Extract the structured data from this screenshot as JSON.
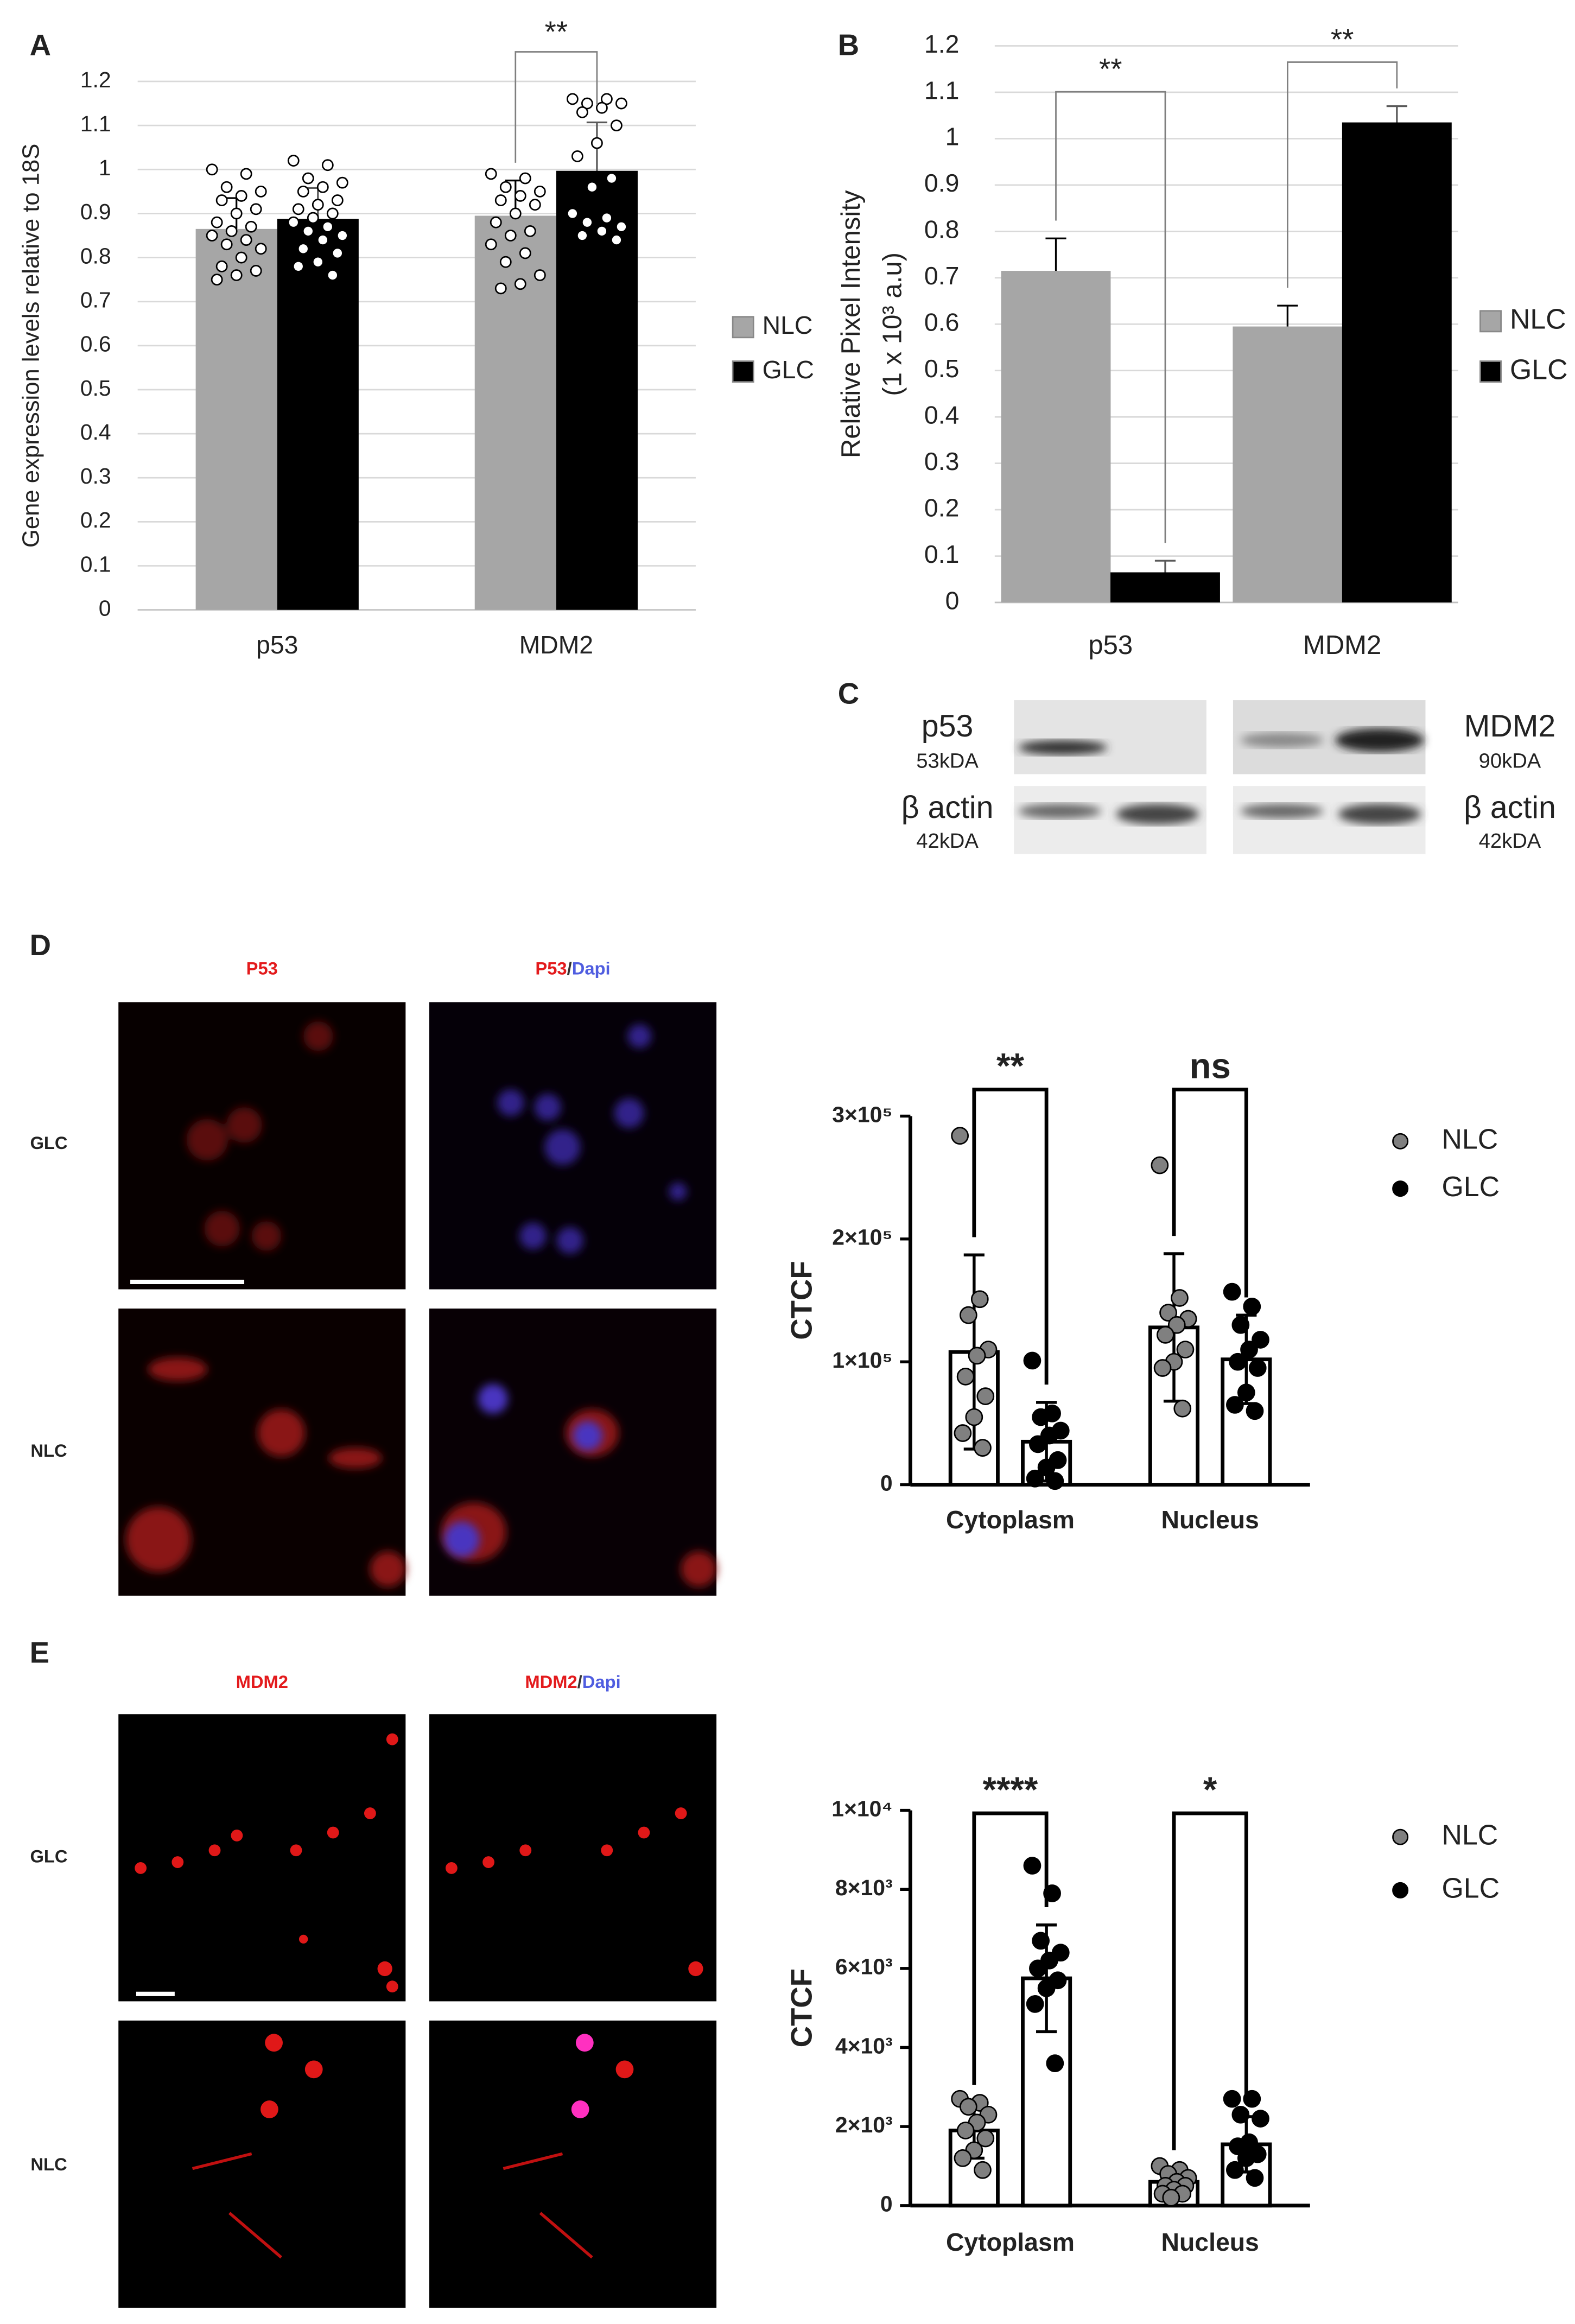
{
  "chart_data": [
    {
      "type": "bar",
      "panel": "A",
      "y_label": [
        "Gene expression levels relative to 18S"
      ],
      "categories": [
        "p53",
        "MDM2"
      ],
      "series": [
        {
          "name": "NLC",
          "color": "#a6a6a6",
          "values": [
            0.865,
            0.895
          ],
          "errors": [
            0.07,
            0.08
          ],
          "points": [
            [
              1.0,
              0.99,
              0.96,
              0.95,
              0.94,
              0.93,
              0.91,
              0.9,
              0.88,
              0.87,
              0.86,
              0.85,
              0.84,
              0.83,
              0.82,
              0.8,
              0.78,
              0.77,
              0.76,
              0.75
            ],
            [
              0.99,
              0.98,
              0.96,
              0.95,
              0.94,
              0.93,
              0.92,
              0.9,
              0.88,
              0.86,
              0.85,
              0.83,
              0.81,
              0.79,
              0.76,
              0.74,
              0.73
            ]
          ]
        },
        {
          "name": "GLC",
          "color": "#000000",
          "values": [
            0.888,
            0.997
          ],
          "errors": [
            0.07,
            0.11
          ],
          "points": [
            [
              1.02,
              1.01,
              0.98,
              0.97,
              0.96,
              0.95,
              0.93,
              0.92,
              0.91,
              0.9,
              0.89,
              0.88,
              0.87,
              0.86,
              0.85,
              0.84,
              0.82,
              0.81,
              0.79,
              0.78,
              0.76
            ],
            [
              1.16,
              1.16,
              1.15,
              1.15,
              1.14,
              1.13,
              1.1,
              1.06,
              1.03,
              0.98,
              0.96,
              0.9,
              0.89,
              0.88,
              0.87,
              0.86,
              0.85,
              0.84
            ]
          ]
        }
      ],
      "point_fill": "#ffffff",
      "ylim": [
        0,
        1.2
      ],
      "yticks": [
        0,
        0.1,
        0.2,
        0.3,
        0.4,
        0.5,
        0.6,
        0.7,
        0.8,
        0.9,
        1,
        1.1,
        1.2
      ],
      "grid": true,
      "legend": "right",
      "legend_marker": "square",
      "annotations": [
        {
          "text": "**",
          "category": "MDM2"
        }
      ]
    },
    {
      "type": "bar",
      "panel": "B",
      "y_label": [
        "Relative Pixel Intensity",
        "(1 x 10³ a.u)"
      ],
      "categories": [
        "p53",
        "MDM2"
      ],
      "series": [
        {
          "name": "NLC",
          "color": "#a6a6a6",
          "values": [
            0.715,
            0.595
          ],
          "errors": [
            0.07,
            0.045
          ]
        },
        {
          "name": "GLC",
          "color": "#000000",
          "values": [
            0.065,
            1.035
          ],
          "errors": [
            0.025,
            0.035
          ]
        }
      ],
      "ylim": [
        0,
        1.2
      ],
      "yticks": [
        0,
        0.1,
        0.2,
        0.3,
        0.4,
        0.5,
        0.6,
        0.7,
        0.8,
        0.9,
        1,
        1.1,
        1.2
      ],
      "grid": true,
      "legend": "right",
      "legend_marker": "square",
      "annotations": [
        {
          "text": "**",
          "category": "p53"
        },
        {
          "text": "**",
          "category": "MDM2"
        }
      ]
    },
    {
      "type": "bar",
      "y_label": [
        "CTCF"
      ],
      "categories": [
        "Cytoplasm",
        "Nucleus"
      ],
      "series": [
        {
          "name": "NLC",
          "color": "#808080",
          "values": [
            108000,
            128000
          ],
          "errors": [
            79000,
            60000
          ],
          "points": [
            [
              284000,
              151000,
              138000,
              110000,
              105000,
              88000,
              72000,
              55000,
              42000,
              30000
            ],
            [
              260000,
              152000,
              140000,
              135000,
              130000,
              122000,
              110000,
              100000,
              95000,
              62000
            ]
          ]
        },
        {
          "name": "GLC",
          "color": "#000000",
          "values": [
            35000,
            102000
          ],
          "errors": [
            32000,
            36000
          ],
          "points": [
            [
              101000,
              58000,
              55000,
              44000,
              40000,
              33000,
              20000,
              14000,
              5000,
              3000
            ],
            [
              157000,
              145000,
              130000,
              118000,
              110000,
              100000,
              95000,
              75000,
              65000,
              60000
            ]
          ]
        }
      ],
      "bar_fill": "#ffffff",
      "ylim": [
        0,
        300000
      ],
      "yticks": [
        0,
        {
          "value": 100000,
          "label": "1×10⁵"
        },
        {
          "value": 200000,
          "label": "2×10⁵"
        },
        {
          "value": 300000,
          "label": "3×10⁵"
        }
      ],
      "grid": false,
      "legend": "right",
      "legend_marker": "circle",
      "annotations": [
        {
          "text": "**",
          "category": "Cytoplasm"
        },
        {
          "text": "ns",
          "category": "Nucleus"
        }
      ]
    },
    {
      "type": "bar",
      "y_label": [
        "CTCF"
      ],
      "categories": [
        "Cytoplasm",
        "Nucleus"
      ],
      "series": [
        {
          "name": "NLC",
          "color": "#808080",
          "values": [
            1900,
            600
          ],
          "errors": [
            700,
            350
          ],
          "points": [
            [
              2700,
              2600,
              2500,
              2300,
              2100,
              1900,
              1700,
              1400,
              1200,
              900
            ],
            [
              1000,
              900,
              800,
              700,
              600,
              500,
              500,
              400,
              300,
              300,
              200
            ]
          ]
        },
        {
          "name": "GLC",
          "color": "#000000",
          "values": [
            5750,
            1550
          ],
          "errors": [
            1350,
            700
          ],
          "points": [
            [
              8600,
              7900,
              6700,
              6400,
              6200,
              6000,
              5700,
              5500,
              5100,
              3600
            ],
            [
              2700,
              2700,
              2300,
              2200,
              1600,
              1500,
              1300,
              1200,
              900,
              700
            ]
          ]
        }
      ],
      "bar_fill": "#ffffff",
      "ylim": [
        0,
        10000
      ],
      "yticks": [
        0,
        {
          "value": 2000,
          "label": "2×10³"
        },
        {
          "value": 4000,
          "label": "4×10³"
        },
        {
          "value": 6000,
          "label": "6×10³"
        },
        {
          "value": 8000,
          "label": "8×10³"
        },
        {
          "value": 10000,
          "label": "1×10⁴"
        }
      ],
      "grid": false,
      "legend": "right",
      "legend_marker": "circle",
      "annotations": [
        {
          "text": "****",
          "category": "Cytoplasm"
        },
        {
          "text": "*",
          "category": "Nucleus"
        }
      ]
    }
  ],
  "blot": {
    "panel": "C",
    "left": [
      {
        "name": "p53",
        "size": "53kDA"
      },
      {
        "name": "β actin",
        "size": "42kDA"
      }
    ],
    "right": [
      {
        "name": "MDM2",
        "size": "90kDA"
      },
      {
        "name": "β actin",
        "size": "42kDA"
      }
    ]
  },
  "micrographs": [
    {
      "panel": "D",
      "columns": [
        [
          "P53"
        ],
        [
          "P53",
          "/",
          "Dapi"
        ]
      ],
      "rows": [
        "GLC",
        "NLC"
      ]
    },
    {
      "panel": "E",
      "columns": [
        [
          "MDM2"
        ],
        [
          "MDM2",
          "/",
          "Dapi"
        ]
      ],
      "rows": [
        "GLC",
        "NLC"
      ]
    }
  ]
}
